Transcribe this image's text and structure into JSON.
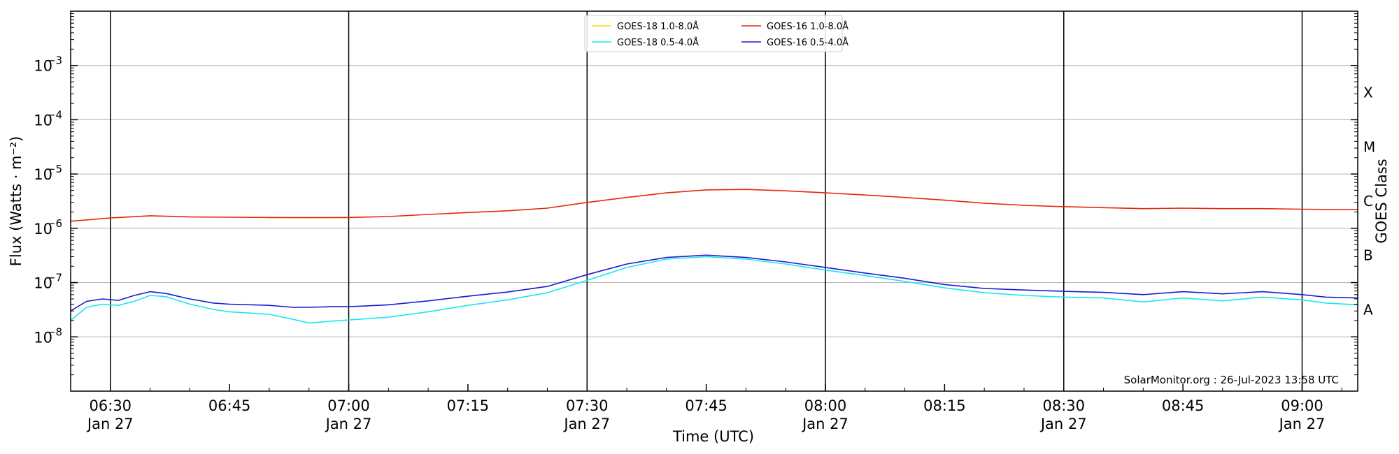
{
  "chart_data": {
    "type": "line",
    "xlabel": "Time (UTC)",
    "ylabel": "Flux (Watts · m⁻²)",
    "y2label": "GOES Class",
    "yscale": "log",
    "xlim": [
      "06:25",
      "09:07"
    ],
    "ylim": [
      1e-09,
      0.01
    ],
    "x_ticks": [
      {
        "time": "06:30",
        "line1": "06:30",
        "line2": "Jan 27"
      },
      {
        "time": "06:45",
        "line1": "06:45",
        "line2": ""
      },
      {
        "time": "07:00",
        "line1": "07:00",
        "line2": "Jan 27"
      },
      {
        "time": "07:15",
        "line1": "07:15",
        "line2": ""
      },
      {
        "time": "07:30",
        "line1": "07:30",
        "line2": "Jan 27"
      },
      {
        "time": "07:45",
        "line1": "07:45",
        "line2": ""
      },
      {
        "time": "08:00",
        "line1": "08:00",
        "line2": "Jan 27"
      },
      {
        "time": "08:15",
        "line1": "08:15",
        "line2": ""
      },
      {
        "time": "08:30",
        "line1": "08:30",
        "line2": "Jan 27"
      },
      {
        "time": "08:45",
        "line1": "08:45",
        "line2": ""
      },
      {
        "time": "09:00",
        "line1": "09:00",
        "line2": "Jan 27"
      }
    ],
    "y_ticks": [
      {
        "value": 1e-08,
        "base": "10",
        "exp": "−8"
      },
      {
        "value": 1e-07,
        "base": "10",
        "exp": "−7"
      },
      {
        "value": 1e-06,
        "base": "10",
        "exp": "−6"
      },
      {
        "value": 1e-05,
        "base": "10",
        "exp": "−5"
      },
      {
        "value": 0.0001,
        "base": "10",
        "exp": "−4"
      },
      {
        "value": 0.001,
        "base": "10",
        "exp": "−3"
      }
    ],
    "goes_classes": [
      {
        "label": "A",
        "value": 3.16e-08
      },
      {
        "label": "B",
        "value": 3.16e-07
      },
      {
        "label": "C",
        "value": 3.16e-06
      },
      {
        "label": "M",
        "value": 3.16e-05
      },
      {
        "label": "X",
        "value": 0.000316
      }
    ],
    "vertical_lines": [
      "06:30",
      "07:00",
      "07:30",
      "08:00",
      "08:30",
      "09:00"
    ],
    "grid": "horizontal at decades",
    "legend_position": "top-center",
    "watermark": "SolarMonitor.org : 26-Jul-2023 13:58 UTC",
    "series": [
      {
        "name": "GOES-18 1.0-8.0Å",
        "color": "#ffd700",
        "x": [],
        "y": []
      },
      {
        "name": "GOES-16 1.0-8.0Å",
        "color": "#e8260a",
        "x": [
          "06:25",
          "06:30",
          "06:35",
          "06:40",
          "06:45",
          "06:50",
          "06:55",
          "07:00",
          "07:05",
          "07:10",
          "07:15",
          "07:20",
          "07:25",
          "07:30",
          "07:35",
          "07:40",
          "07:45",
          "07:50",
          "07:55",
          "08:00",
          "08:05",
          "08:10",
          "08:15",
          "08:20",
          "08:25",
          "08:30",
          "08:35",
          "08:40",
          "08:45",
          "08:50",
          "08:55",
          "09:00",
          "09:07"
        ],
        "y": [
          1.35e-06,
          1.55e-06,
          1.7e-06,
          1.62e-06,
          1.6e-06,
          1.58e-06,
          1.57e-06,
          1.58e-06,
          1.65e-06,
          1.8e-06,
          1.95e-06,
          2.1e-06,
          2.35e-06,
          3e-06,
          3.7e-06,
          4.5e-06,
          5.1e-06,
          5.2e-06,
          4.9e-06,
          4.5e-06,
          4.1e-06,
          3.7e-06,
          3.3e-06,
          2.9e-06,
          2.65e-06,
          2.5e-06,
          2.4e-06,
          2.3e-06,
          2.35e-06,
          2.3e-06,
          2.3e-06,
          2.25e-06,
          2.2e-06
        ]
      },
      {
        "name": "GOES-18 0.5-4.0Å",
        "color": "#1ae8e8",
        "x": [
          "06:25",
          "06:27",
          "06:29",
          "06:31",
          "06:33",
          "06:35",
          "06:37",
          "06:40",
          "06:43",
          "06:45",
          "06:50",
          "06:53",
          "06:55",
          "06:58",
          "07:00",
          "07:05",
          "07:10",
          "07:15",
          "07:20",
          "07:25",
          "07:30",
          "07:35",
          "07:40",
          "07:45",
          "07:50",
          "07:55",
          "08:00",
          "08:05",
          "08:10",
          "08:15",
          "08:20",
          "08:25",
          "08:30",
          "08:35",
          "08:40",
          "08:45",
          "08:50",
          "08:55",
          "09:00",
          "09:03",
          "09:07"
        ],
        "y": [
          2e-08,
          3.5e-08,
          4e-08,
          3.8e-08,
          4.5e-08,
          5.8e-08,
          5.5e-08,
          4e-08,
          3.2e-08,
          2.9e-08,
          2.6e-08,
          2.1e-08,
          1.8e-08,
          1.95e-08,
          2.05e-08,
          2.3e-08,
          2.9e-08,
          3.8e-08,
          4.8e-08,
          6.5e-08,
          1.1e-07,
          1.9e-07,
          2.7e-07,
          3e-07,
          2.7e-07,
          2.2e-07,
          1.7e-07,
          1.35e-07,
          1.05e-07,
          8e-08,
          6.5e-08,
          5.8e-08,
          5.4e-08,
          5.2e-08,
          4.4e-08,
          5.2e-08,
          4.6e-08,
          5.4e-08,
          4.8e-08,
          4.2e-08,
          3.9e-08
        ]
      },
      {
        "name": "GOES-16 0.5-4.0Å",
        "color": "#1a1ad6",
        "x": [
          "06:25",
          "06:27",
          "06:29",
          "06:31",
          "06:33",
          "06:35",
          "06:37",
          "06:40",
          "06:43",
          "06:45",
          "06:50",
          "06:53",
          "06:55",
          "06:58",
          "07:00",
          "07:05",
          "07:10",
          "07:15",
          "07:20",
          "07:25",
          "07:30",
          "07:35",
          "07:40",
          "07:45",
          "07:50",
          "07:55",
          "08:00",
          "08:05",
          "08:10",
          "08:15",
          "08:20",
          "08:25",
          "08:30",
          "08:35",
          "08:40",
          "08:45",
          "08:50",
          "08:55",
          "09:00",
          "09:03",
          "09:07"
        ],
        "y": [
          3e-08,
          4.5e-08,
          5e-08,
          4.7e-08,
          5.8e-08,
          6.8e-08,
          6.3e-08,
          5e-08,
          4.2e-08,
          4e-08,
          3.8e-08,
          3.5e-08,
          3.5e-08,
          3.6e-08,
          3.6e-08,
          3.9e-08,
          4.6e-08,
          5.6e-08,
          6.7e-08,
          8.5e-08,
          1.4e-07,
          2.2e-07,
          2.9e-07,
          3.2e-07,
          2.9e-07,
          2.4e-07,
          1.9e-07,
          1.5e-07,
          1.2e-07,
          9.2e-08,
          7.8e-08,
          7.3e-08,
          6.9e-08,
          6.6e-08,
          6e-08,
          6.8e-08,
          6.2e-08,
          6.8e-08,
          6e-08,
          5.4e-08,
          5.2e-08
        ]
      }
    ]
  }
}
